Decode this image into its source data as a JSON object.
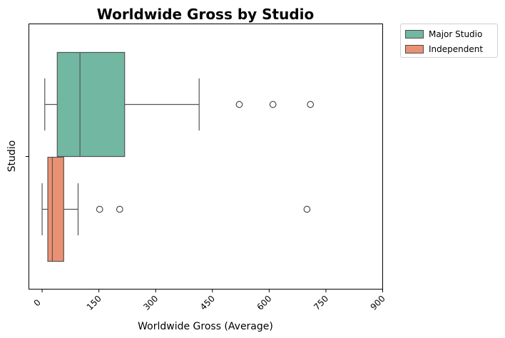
{
  "chart_data": {
    "type": "box",
    "title": "Worldwide Gross by Studio",
    "xlabel": "Worldwide Gross (Average)",
    "ylabel": "Studio",
    "xlim": [
      -35,
      900
    ],
    "xticks": [
      0,
      150,
      300,
      450,
      600,
      750,
      900
    ],
    "xtick_labels": [
      "0",
      "150",
      "300",
      "450",
      "600",
      "750",
      "900"
    ],
    "ytick_labels": [
      ""
    ],
    "grid": false,
    "legend_position": "outside-top-right",
    "series": [
      {
        "name": "Major Studio",
        "color": "#66c2a5",
        "box_fill": "#72b7a1",
        "whisker_low": 7,
        "q1": 40,
        "median": 100,
        "q3": 218,
        "whisker_high": 415,
        "outliers": [
          521,
          610,
          709
        ]
      },
      {
        "name": "Independent",
        "color": "#fc8d62",
        "box_fill": "#eb9173",
        "whisker_low": 0,
        "q1": 15,
        "median": 27,
        "q3": 57,
        "whisker_high": 95,
        "outliers": [
          152,
          205,
          700
        ]
      }
    ]
  }
}
